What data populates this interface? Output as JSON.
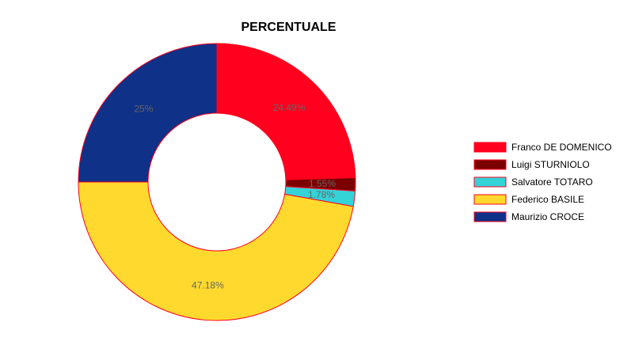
{
  "chart_data": {
    "type": "pie",
    "title": "PERCENTUALE",
    "categories": [
      "Franco DE DOMENICO",
      "Luigi STURNIOLO",
      "Salvatore TOTARO",
      "Federico BASILE",
      "Maurizio CROCE"
    ],
    "values": [
      24.49,
      1.55,
      1.78,
      47.18,
      25
    ],
    "labels": [
      "24.49%",
      "1.55%",
      "1.78%",
      "47.18%",
      "25%"
    ],
    "colors": [
      "#ff001e",
      "#7b0000",
      "#33d3d8",
      "#ffd92e",
      "#0f3187"
    ],
    "border_color": "#ff001e",
    "donut": true,
    "legend_position": "right"
  }
}
